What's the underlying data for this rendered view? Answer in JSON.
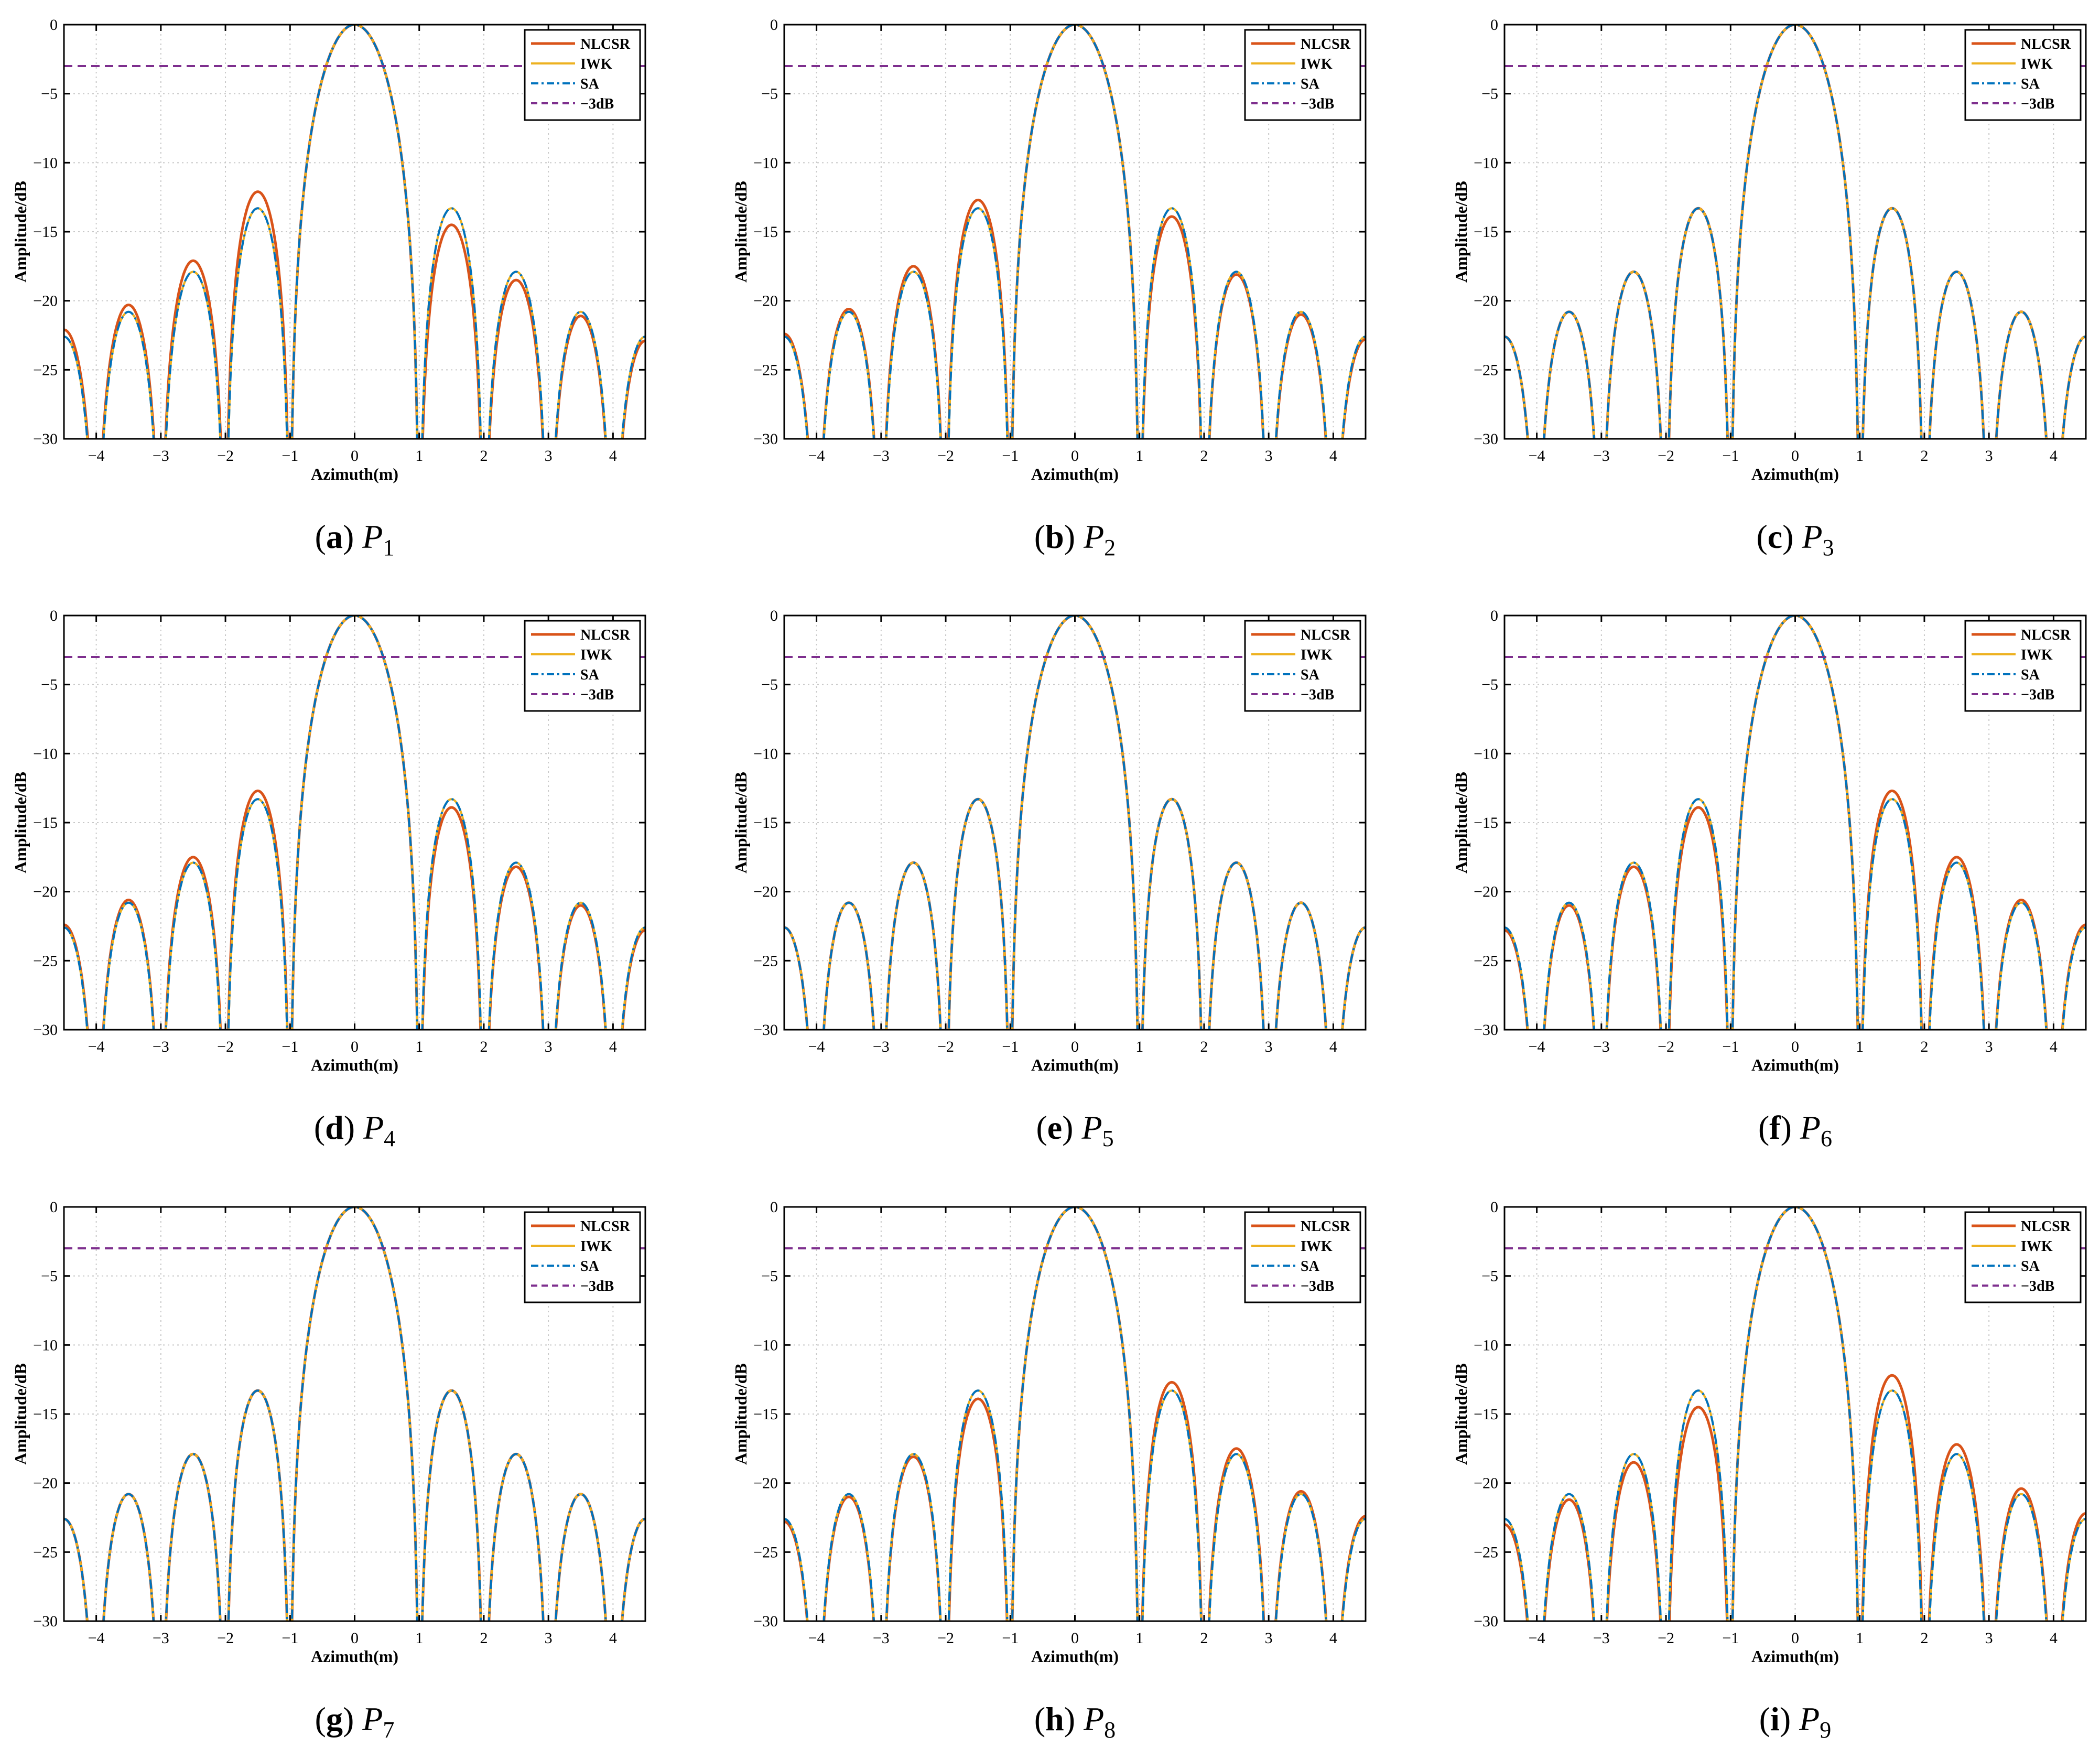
{
  "figure": {
    "xlabel": "Azimuth(m)",
    "ylabel": "Amplitude/dB",
    "xlim": [
      -4.5,
      4.5
    ],
    "ylim": [
      -30,
      0
    ],
    "xticks": [
      -4,
      -3,
      -2,
      -1,
      0,
      1,
      2,
      3,
      4
    ],
    "xtick_labels": [
      "−4",
      "−3",
      "−2",
      "−1",
      "0",
      "1",
      "2",
      "3",
      "4"
    ],
    "yticks": [
      0,
      -5,
      -10,
      -15,
      -20,
      -25,
      -30
    ],
    "ytick_labels": [
      "0",
      "−5",
      "−10",
      "−15",
      "−20",
      "−25",
      "−30"
    ],
    "grid": true,
    "legend_position": "top-right",
    "colors": {
      "NLCSR": "#D95319",
      "IWK": "#EDB120",
      "SA": "#0072BD",
      "minus3dB": "#7E2F8E"
    }
  },
  "chart_data": [
    {
      "type": "line",
      "letter": "a",
      "point": "P",
      "sub": "1",
      "title": "(a) P1",
      "xlabel": "Azimuth(m)",
      "ylabel": "Amplitude/dB",
      "xlim": [
        -4.5,
        4.5
      ],
      "ylim": [
        -30,
        0
      ],
      "legend": [
        "NLCSR",
        "IWK",
        "SA",
        "−3dB"
      ],
      "series": [
        {
          "name": "NLCSR",
          "style": "solid",
          "kind": "sinc",
          "mainlobe_width": 1.0,
          "sidelobe_shift": -0.85,
          "sidelobe_peaks_left": [
            -12.1,
            -17.1,
            -20.3
          ],
          "sidelobe_peaks_right": [
            -14.5,
            -18.5,
            -21.1
          ]
        },
        {
          "name": "IWK",
          "style": "solid",
          "kind": "sinc",
          "mainlobe_width": 1.0,
          "sidelobe_shift": 0,
          "sidelobe_peaks_left": [
            -13.3,
            -17.9,
            -20.8
          ],
          "sidelobe_peaks_right": [
            -13.3,
            -17.9,
            -20.8
          ]
        },
        {
          "name": "SA",
          "style": "dashdot",
          "kind": "sinc",
          "mainlobe_width": 1.0,
          "sidelobe_shift": 0,
          "sidelobe_peaks_left": [
            -13.3,
            -17.9,
            -20.8
          ],
          "sidelobe_peaks_right": [
            -13.3,
            -17.9,
            -20.8
          ]
        },
        {
          "name": "−3dB",
          "style": "dashed",
          "kind": "hline",
          "y": -3
        }
      ]
    },
    {
      "type": "line",
      "letter": "b",
      "point": "P",
      "sub": "2",
      "title": "(b) P2",
      "xlabel": "Azimuth(m)",
      "ylabel": "Amplitude/dB",
      "xlim": [
        -4.5,
        4.5
      ],
      "ylim": [
        -30,
        0
      ],
      "legend": [
        "NLCSR",
        "IWK",
        "SA",
        "−3dB"
      ],
      "series": [
        {
          "name": "NLCSR",
          "style": "solid",
          "kind": "sinc",
          "mainlobe_width": 1.0,
          "sidelobe_shift": -0.5,
          "sidelobe_peaks_left": [
            -12.7,
            -17.5,
            -20.6
          ],
          "sidelobe_peaks_right": [
            -13.9,
            -18.1,
            -21.0
          ]
        },
        {
          "name": "IWK",
          "style": "solid",
          "kind": "sinc",
          "mainlobe_width": 1.0,
          "sidelobe_shift": 0,
          "sidelobe_peaks_left": [
            -13.3,
            -17.9,
            -20.8
          ],
          "sidelobe_peaks_right": [
            -13.3,
            -17.9,
            -20.8
          ]
        },
        {
          "name": "SA",
          "style": "dashdot",
          "kind": "sinc",
          "mainlobe_width": 1.0,
          "sidelobe_shift": 0,
          "sidelobe_peaks_left": [
            -13.3,
            -17.9,
            -20.8
          ],
          "sidelobe_peaks_right": [
            -13.3,
            -17.9,
            -20.8
          ]
        },
        {
          "name": "−3dB",
          "style": "dashed",
          "kind": "hline",
          "y": -3
        }
      ]
    },
    {
      "type": "line",
      "letter": "c",
      "point": "P",
      "sub": "3",
      "title": "(c) P3",
      "xlabel": "Azimuth(m)",
      "ylabel": "Amplitude/dB",
      "xlim": [
        -4.5,
        4.5
      ],
      "ylim": [
        -30,
        0
      ],
      "legend": [
        "NLCSR",
        "IWK",
        "SA",
        "−3dB"
      ],
      "series": [
        {
          "name": "NLCSR",
          "style": "solid",
          "kind": "sinc",
          "mainlobe_width": 1.0,
          "sidelobe_shift": 0,
          "sidelobe_peaks_left": [
            -13.3,
            -17.9,
            -20.8
          ],
          "sidelobe_peaks_right": [
            -13.3,
            -17.9,
            -20.8
          ]
        },
        {
          "name": "IWK",
          "style": "solid",
          "kind": "sinc",
          "mainlobe_width": 1.0,
          "sidelobe_shift": 0,
          "sidelobe_peaks_left": [
            -13.3,
            -17.9,
            -20.8
          ],
          "sidelobe_peaks_right": [
            -13.3,
            -17.9,
            -20.8
          ]
        },
        {
          "name": "SA",
          "style": "dashdot",
          "kind": "sinc",
          "mainlobe_width": 1.0,
          "sidelobe_shift": 0,
          "sidelobe_peaks_left": [
            -13.3,
            -17.9,
            -20.8
          ],
          "sidelobe_peaks_right": [
            -13.3,
            -17.9,
            -20.8
          ]
        },
        {
          "name": "−3dB",
          "style": "dashed",
          "kind": "hline",
          "y": -3
        }
      ]
    },
    {
      "type": "line",
      "letter": "d",
      "point": "P",
      "sub": "4",
      "title": "(d) P4",
      "xlabel": "Azimuth(m)",
      "ylabel": "Amplitude/dB",
      "xlim": [
        -4.5,
        4.5
      ],
      "ylim": [
        -30,
        0
      ],
      "legend": [
        "NLCSR",
        "IWK",
        "SA",
        "−3dB"
      ],
      "series": [
        {
          "name": "NLCSR",
          "style": "solid",
          "kind": "sinc",
          "mainlobe_width": 1.0,
          "sidelobe_shift": -0.5,
          "sidelobe_peaks_left": [
            -12.7,
            -17.5,
            -20.6
          ],
          "sidelobe_peaks_right": [
            -13.9,
            -18.2,
            -21.0
          ]
        },
        {
          "name": "IWK",
          "style": "solid",
          "kind": "sinc",
          "mainlobe_width": 1.0,
          "sidelobe_shift": 0,
          "sidelobe_peaks_left": [
            -13.3,
            -17.9,
            -20.8
          ],
          "sidelobe_peaks_right": [
            -13.3,
            -17.9,
            -20.8
          ]
        },
        {
          "name": "SA",
          "style": "dashdot",
          "kind": "sinc",
          "mainlobe_width": 1.0,
          "sidelobe_shift": 0,
          "sidelobe_peaks_left": [
            -13.3,
            -17.9,
            -20.8
          ],
          "sidelobe_peaks_right": [
            -13.3,
            -17.9,
            -20.8
          ]
        },
        {
          "name": "−3dB",
          "style": "dashed",
          "kind": "hline",
          "y": -3
        }
      ]
    },
    {
      "type": "line",
      "letter": "e",
      "point": "P",
      "sub": "5",
      "title": "(e) P5",
      "xlabel": "Azimuth(m)",
      "ylabel": "Amplitude/dB",
      "xlim": [
        -4.5,
        4.5
      ],
      "ylim": [
        -30,
        0
      ],
      "legend": [
        "NLCSR",
        "IWK",
        "SA",
        "−3dB"
      ],
      "series": [
        {
          "name": "NLCSR",
          "style": "solid",
          "kind": "sinc",
          "mainlobe_width": 1.0,
          "sidelobe_shift": 0,
          "sidelobe_peaks_left": [
            -13.3,
            -17.9,
            -20.8
          ],
          "sidelobe_peaks_right": [
            -13.3,
            -17.9,
            -20.8
          ]
        },
        {
          "name": "IWK",
          "style": "solid",
          "kind": "sinc",
          "mainlobe_width": 1.0,
          "sidelobe_shift": 0,
          "sidelobe_peaks_left": [
            -13.3,
            -17.9,
            -20.8
          ],
          "sidelobe_peaks_right": [
            -13.3,
            -17.9,
            -20.8
          ]
        },
        {
          "name": "SA",
          "style": "dashdot",
          "kind": "sinc",
          "mainlobe_width": 1.0,
          "sidelobe_shift": 0,
          "sidelobe_peaks_left": [
            -13.3,
            -17.9,
            -20.8
          ],
          "sidelobe_peaks_right": [
            -13.3,
            -17.9,
            -20.8
          ]
        },
        {
          "name": "−3dB",
          "style": "dashed",
          "kind": "hline",
          "y": -3
        }
      ]
    },
    {
      "type": "line",
      "letter": "f",
      "point": "P",
      "sub": "6",
      "title": "(f) P6",
      "xlabel": "Azimuth(m)",
      "ylabel": "Amplitude/dB",
      "xlim": [
        -4.5,
        4.5
      ],
      "ylim": [
        -30,
        0
      ],
      "legend": [
        "NLCSR",
        "IWK",
        "SA",
        "−3dB"
      ],
      "series": [
        {
          "name": "NLCSR",
          "style": "solid",
          "kind": "sinc",
          "mainlobe_width": 1.0,
          "sidelobe_shift": 0.5,
          "sidelobe_peaks_left": [
            -13.9,
            -18.2,
            -21.0
          ],
          "sidelobe_peaks_right": [
            -12.7,
            -17.5,
            -20.6
          ]
        },
        {
          "name": "IWK",
          "style": "solid",
          "kind": "sinc",
          "mainlobe_width": 1.0,
          "sidelobe_shift": 0,
          "sidelobe_peaks_left": [
            -13.3,
            -17.9,
            -20.8
          ],
          "sidelobe_peaks_right": [
            -13.3,
            -17.9,
            -20.8
          ]
        },
        {
          "name": "SA",
          "style": "dashdot",
          "kind": "sinc",
          "mainlobe_width": 1.0,
          "sidelobe_shift": 0,
          "sidelobe_peaks_left": [
            -13.3,
            -17.9,
            -20.8
          ],
          "sidelobe_peaks_right": [
            -13.3,
            -17.9,
            -20.8
          ]
        },
        {
          "name": "−3dB",
          "style": "dashed",
          "kind": "hline",
          "y": -3
        }
      ]
    },
    {
      "type": "line",
      "letter": "g",
      "point": "P",
      "sub": "7",
      "title": "(g) P7",
      "xlabel": "Azimuth(m)",
      "ylabel": "Amplitude/dB",
      "xlim": [
        -4.5,
        4.5
      ],
      "ylim": [
        -30,
        0
      ],
      "legend": [
        "NLCSR",
        "IWK",
        "SA",
        "−3dB"
      ],
      "series": [
        {
          "name": "NLCSR",
          "style": "solid",
          "kind": "sinc",
          "mainlobe_width": 1.0,
          "sidelobe_shift": 0,
          "sidelobe_peaks_left": [
            -13.3,
            -17.9,
            -20.8
          ],
          "sidelobe_peaks_right": [
            -13.3,
            -17.9,
            -20.8
          ]
        },
        {
          "name": "IWK",
          "style": "solid",
          "kind": "sinc",
          "mainlobe_width": 1.0,
          "sidelobe_shift": 0,
          "sidelobe_peaks_left": [
            -13.3,
            -17.9,
            -20.8
          ],
          "sidelobe_peaks_right": [
            -13.3,
            -17.9,
            -20.8
          ]
        },
        {
          "name": "SA",
          "style": "dashdot",
          "kind": "sinc",
          "mainlobe_width": 1.0,
          "sidelobe_shift": 0,
          "sidelobe_peaks_left": [
            -13.3,
            -17.9,
            -20.8
          ],
          "sidelobe_peaks_right": [
            -13.3,
            -17.9,
            -20.8
          ]
        },
        {
          "name": "−3dB",
          "style": "dashed",
          "kind": "hline",
          "y": -3
        }
      ]
    },
    {
      "type": "line",
      "letter": "h",
      "point": "P",
      "sub": "8",
      "title": "(h) P8",
      "xlabel": "Azimuth(m)",
      "ylabel": "Amplitude/dB",
      "xlim": [
        -4.5,
        4.5
      ],
      "ylim": [
        -30,
        0
      ],
      "legend": [
        "NLCSR",
        "IWK",
        "SA",
        "−3dB"
      ],
      "series": [
        {
          "name": "NLCSR",
          "style": "solid",
          "kind": "sinc",
          "mainlobe_width": 1.0,
          "sidelobe_shift": 0.5,
          "sidelobe_peaks_left": [
            -13.9,
            -18.1,
            -21.0
          ],
          "sidelobe_peaks_right": [
            -12.7,
            -17.5,
            -20.6
          ]
        },
        {
          "name": "IWK",
          "style": "solid",
          "kind": "sinc",
          "mainlobe_width": 1.0,
          "sidelobe_shift": 0,
          "sidelobe_peaks_left": [
            -13.3,
            -17.9,
            -20.8
          ],
          "sidelobe_peaks_right": [
            -13.3,
            -17.9,
            -20.8
          ]
        },
        {
          "name": "SA",
          "style": "dashdot",
          "kind": "sinc",
          "mainlobe_width": 1.0,
          "sidelobe_shift": 0,
          "sidelobe_peaks_left": [
            -13.3,
            -17.9,
            -20.8
          ],
          "sidelobe_peaks_right": [
            -13.3,
            -17.9,
            -20.8
          ]
        },
        {
          "name": "−3dB",
          "style": "dashed",
          "kind": "hline",
          "y": -3
        }
      ]
    },
    {
      "type": "line",
      "letter": "i",
      "point": "P",
      "sub": "9",
      "title": "(i) P9",
      "xlabel": "Azimuth(m)",
      "ylabel": "Amplitude/dB",
      "xlim": [
        -4.5,
        4.5
      ],
      "ylim": [
        -30,
        0
      ],
      "legend": [
        "NLCSR",
        "IWK",
        "SA",
        "−3dB"
      ],
      "series": [
        {
          "name": "NLCSR",
          "style": "solid",
          "kind": "sinc",
          "mainlobe_width": 1.0,
          "sidelobe_shift": 0.85,
          "sidelobe_peaks_left": [
            -14.5,
            -18.5,
            -21.2
          ],
          "sidelobe_peaks_right": [
            -12.2,
            -17.2,
            -20.4
          ]
        },
        {
          "name": "IWK",
          "style": "solid",
          "kind": "sinc",
          "mainlobe_width": 1.0,
          "sidelobe_shift": 0,
          "sidelobe_peaks_left": [
            -13.3,
            -17.9,
            -20.8
          ],
          "sidelobe_peaks_right": [
            -13.3,
            -17.9,
            -20.8
          ]
        },
        {
          "name": "SA",
          "style": "dashdot",
          "kind": "sinc",
          "mainlobe_width": 1.0,
          "sidelobe_shift": 0,
          "sidelobe_peaks_left": [
            -13.3,
            -17.9,
            -20.8
          ],
          "sidelobe_peaks_right": [
            -13.3,
            -17.9,
            -20.8
          ]
        },
        {
          "name": "−3dB",
          "style": "dashed",
          "kind": "hline",
          "y": -3
        }
      ]
    }
  ]
}
